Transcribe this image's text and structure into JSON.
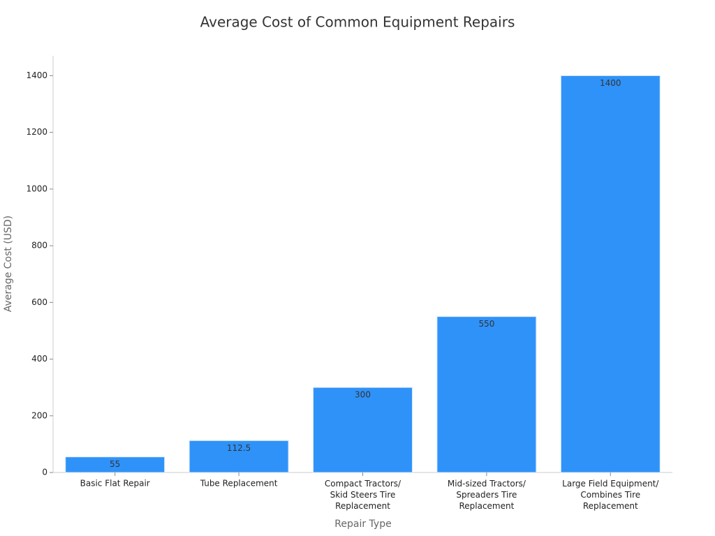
{
  "chart_data": {
    "type": "bar",
    "title": "Average Cost of Common Equipment Repairs",
    "x_label": "Repair Type",
    "y_label": "Average Cost (USD)",
    "categories": [
      "Basic Flat Repair",
      "Tube Replacement",
      "Compact Tractors/\nSkid Steers Tire\nReplacement",
      "Mid-sized Tractors/\nSpreaders Tire\nReplacement",
      "Large Field Equipment/\nCombines Tire\nReplacement"
    ],
    "values": [
      55,
      112.5,
      300,
      550,
      1400
    ],
    "color": "#2f92f8",
    "ylim": [
      0,
      1470
    ],
    "yticks": [
      0,
      200,
      400,
      600,
      800,
      1000,
      1200,
      1400
    ],
    "grid": false
  }
}
